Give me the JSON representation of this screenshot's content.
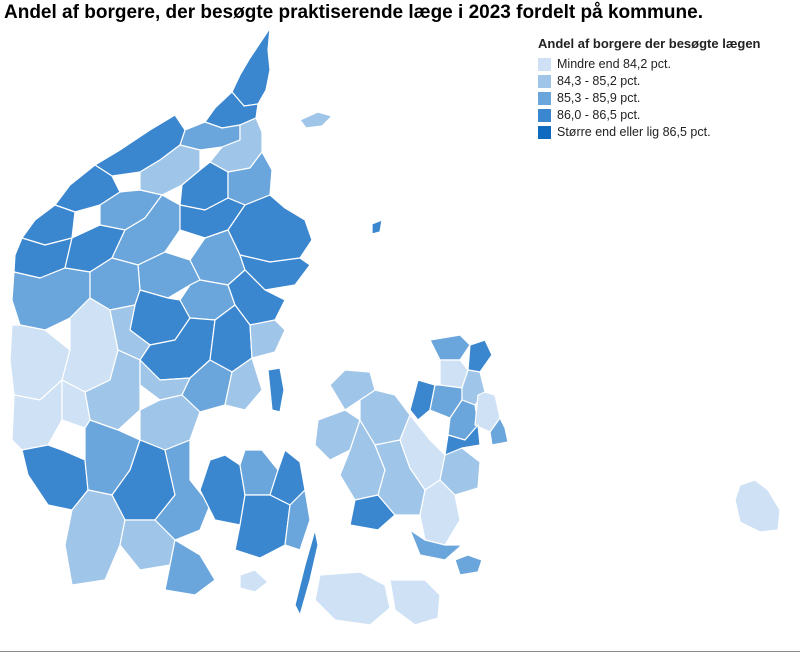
{
  "title": "Andel af borgere, der besøgte praktiserende læge i 2023 fordelt på kommune.",
  "legend": {
    "title": "Andel af borgere der besøgte lægen",
    "items": [
      {
        "label": "Mindre end 84,2 pct.",
        "color": "#cfe1f4"
      },
      {
        "label": "84,3 - 85,2 pct.",
        "color": "#9fc5e8"
      },
      {
        "label": "85,3 - 85,9 pct.",
        "color": "#6aa6dc"
      },
      {
        "label": "86,0 - 86,5 pct.",
        "color": "#3a86cf"
      },
      {
        "label": "Større end eller lig 86,5 pct.",
        "color": "#0d6abf"
      }
    ]
  },
  "map": {
    "region": "Danmark",
    "boundary_color": "#ffffff"
  }
}
